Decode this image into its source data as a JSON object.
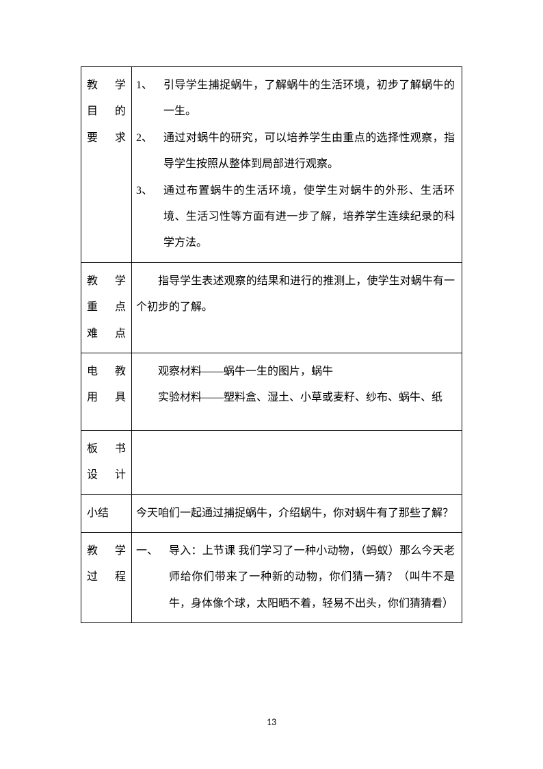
{
  "colors": {
    "border": "#000000",
    "text": "#000000",
    "background": "#ffffff"
  },
  "typography": {
    "font_family": "SimSun",
    "font_size": 16,
    "line_height": 2.4
  },
  "table": {
    "rows": [
      {
        "label_lines": [
          "教 学",
          "目 的",
          "要 求"
        ],
        "content_type": "numbered",
        "items": [
          {
            "num": "1、",
            "text": "引导学生捕捉蜗牛，了解蜗牛的生活环境，初步了解蜗牛的一生。"
          },
          {
            "num": "2、",
            "text": "通过对蜗牛的研究，可以培养学生由重点的选择性观察，指导学生按照从整体到局部进行观察。"
          },
          {
            "num": "3、",
            "text": "通过布置蜗牛的生活环境，使学生对蜗牛的外形、生活环境、生活习性等方面有进一步了解，培养学生连续纪录的科学方法。"
          }
        ]
      },
      {
        "label_lines": [
          "教 学",
          "重 点",
          "难 点"
        ],
        "content_type": "indent",
        "text": "指导学生表述观察的结果和进行的推测上，使学生对蜗牛有一个初步的了解。"
      },
      {
        "label_lines": [
          "电 教",
          "用 具"
        ],
        "content_type": "lines",
        "lines": [
          {
            "indent": true,
            "text": "观察材料——蜗牛一生的图片，蜗牛"
          },
          {
            "indent": true,
            "text": "实验材料——塑料盒、湿土、小草或麦籽、纱布、蜗牛、纸",
            "wrap": true
          }
        ]
      },
      {
        "label_lines": [
          "板 书",
          "设 计"
        ],
        "content_type": "empty",
        "text": ""
      },
      {
        "label_lines": [
          "小结"
        ],
        "content_type": "plain",
        "text": "今天咱们一起通过捕捉蜗牛，介绍蜗牛，你对蜗牛有了那些了解？"
      },
      {
        "label_lines": [
          "教 学",
          "过 程"
        ],
        "content_type": "cn_numbered",
        "items": [
          {
            "num": "一、",
            "text": "导入：上节课 我们学习了一种小动物，（蚂蚁）那么今天老师给你们带来了一种新的动物，你们猜一猜？（叫牛不是牛，身体像个球，太阳晒不着，轻易不出头，你们猜猜看）"
          }
        ]
      }
    ]
  },
  "page_number": "13"
}
